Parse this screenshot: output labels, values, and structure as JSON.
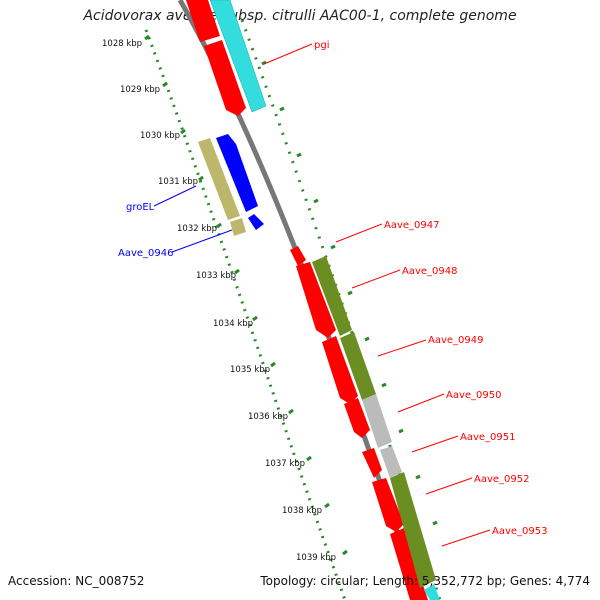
{
  "title": "Acidovorax avenae subsp. citrulli AAC00-1, complete genome",
  "accession_label": "Accession: NC_008752",
  "topology_label": "Topology: circular; Length: 5,352,772 bp; Genes: 4,774",
  "ruler": {
    "ticks": [
      "1028 kbp",
      "1029 kbp",
      "1030 kbp",
      "1031 kbp",
      "1032 kbp",
      "1033 kbp",
      "1034 kbp",
      "1035 kbp",
      "1036 kbp",
      "1037 kbp",
      "1038 kbp",
      "1039 kbp"
    ]
  },
  "gene_labels": {
    "pgi": "pgi",
    "groEL": "groEL",
    "aave_0946": "Aave_0946",
    "aave_0947": "Aave_0947",
    "aave_0948": "Aave_0948",
    "aave_0949": "Aave_0949",
    "aave_0950": "Aave_0950",
    "aave_0951": "Aave_0951",
    "aave_0952": "Aave_0952",
    "aave_0953": "Aave_0953"
  },
  "colors": {
    "red": "#ff0000",
    "blue": "#0000ff",
    "cyan": "#33dddd",
    "olive": "#6b8e23",
    "khaki": "#bdb76b",
    "gray": "#bbbbbb",
    "tick_green": "#228b22",
    "backbone": "#777777"
  }
}
